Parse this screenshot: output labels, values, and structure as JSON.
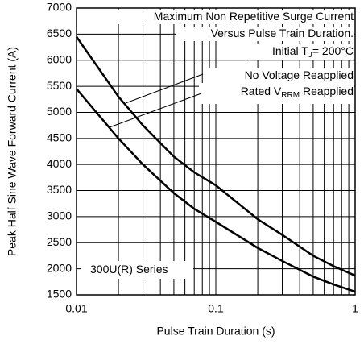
{
  "chart_data": {
    "type": "line",
    "xlabel": "Pulse Train Duration (s)",
    "ylabel": "Peak Half Sine Wave Forward Current (A)",
    "xlog": true,
    "grid": true,
    "xlim": [
      0.01,
      1
    ],
    "ylim": [
      1500,
      7000
    ],
    "xticks": [
      0.01,
      0.1,
      1
    ],
    "xminor": [
      0.02,
      0.03,
      0.04,
      0.05,
      0.06,
      0.07,
      0.08,
      0.09,
      0.2,
      0.3,
      0.4,
      0.5,
      0.6,
      0.7,
      0.8,
      0.9
    ],
    "yticks": [
      1500,
      2000,
      2500,
      3000,
      3500,
      4000,
      4500,
      5000,
      5500,
      6000,
      6500,
      7000
    ],
    "x": [
      0.01,
      0.02,
      0.03,
      0.05,
      0.07,
      0.1,
      0.2,
      0.3,
      0.5,
      0.7,
      1
    ],
    "series": [
      {
        "name": [
          "No Voltage Reapplied"
        ],
        "color": "#000000",
        "values": [
          6450,
          5300,
          4750,
          4150,
          3850,
          3600,
          2950,
          2650,
          2250,
          2050,
          1870
        ]
      },
      {
        "name": [
          "Rated V",
          "RRM",
          " Reapplied"
        ],
        "color": "#000000",
        "values": [
          5450,
          4500,
          4000,
          3450,
          3150,
          2900,
          2400,
          2150,
          1850,
          1700,
          1560
        ]
      }
    ],
    "annotations": [
      [
        "Maximum Non Repetitive Surge Current"
      ],
      [
        "Versus Pulse Train Duration."
      ],
      [
        "Initial T",
        "J",
        "= 200°C"
      ],
      [
        "300U(R) Series"
      ]
    ]
  }
}
